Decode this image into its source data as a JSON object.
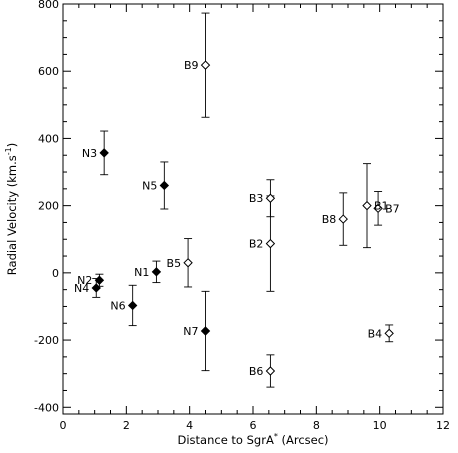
{
  "chart_data": {
    "type": "scatter",
    "title": "",
    "xlabel": "Distance to SgrA",
    "xlabel_superscript": "*",
    "xlabel_suffix": " (Arcsec)",
    "ylabel": "Radial Velocity",
    "ylabel_unit_main": "(km.s",
    "ylabel_unit_sup": "-1",
    "ylabel_unit_end": ")",
    "xlim": [
      0,
      12
    ],
    "ylim": [
      -420,
      800
    ],
    "xticks": [
      0,
      2,
      4,
      6,
      8,
      10,
      12
    ],
    "yticks": [
      -400,
      -200,
      0,
      200,
      400,
      600,
      800
    ],
    "grid": false,
    "legend": "none",
    "marker_color": "#000000",
    "series": [
      {
        "marker": "filled-diamond",
        "points": [
          {
            "label": "N1",
            "x": 2.95,
            "y": 3,
            "err": 32
          },
          {
            "label": "N2",
            "x": 1.15,
            "y": -22,
            "err": 18
          },
          {
            "label": "N3",
            "x": 1.3,
            "y": 357,
            "err": 65
          },
          {
            "label": "N4",
            "x": 1.05,
            "y": -45,
            "err": 28
          },
          {
            "label": "N5",
            "x": 3.2,
            "y": 260,
            "err": 70
          },
          {
            "label": "N6",
            "x": 2.2,
            "y": -97,
            "err": 60
          },
          {
            "label": "N7",
            "x": 4.5,
            "y": -173,
            "err": 118
          }
        ]
      },
      {
        "marker": "open-diamond",
        "points": [
          {
            "label": "B1",
            "x": 9.6,
            "y": 200,
            "err": 125
          },
          {
            "label": "B2",
            "x": 6.55,
            "y": 87,
            "err": 142
          },
          {
            "label": "B3",
            "x": 6.55,
            "y": 222,
            "err": 55
          },
          {
            "label": "B4",
            "x": 10.3,
            "y": -180,
            "err": 25
          },
          {
            "label": "B5",
            "x": 3.95,
            "y": 30,
            "err": 72
          },
          {
            "label": "B6",
            "x": 6.55,
            "y": -292,
            "err": 48
          },
          {
            "label": "B7",
            "x": 9.95,
            "y": 192,
            "err": 50
          },
          {
            "label": "B8",
            "x": 8.85,
            "y": 160,
            "err": 78
          },
          {
            "label": "B9",
            "x": 4.5,
            "y": 618,
            "err": 155
          }
        ]
      }
    ]
  }
}
